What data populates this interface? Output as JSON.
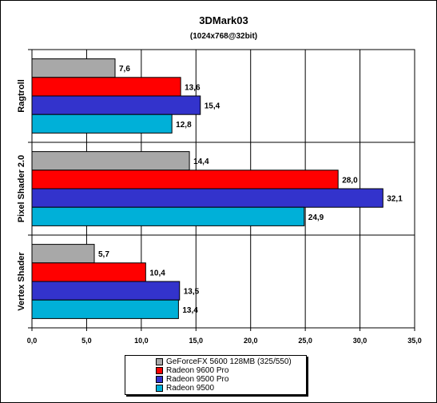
{
  "chart_data": {
    "type": "bar",
    "orientation": "horizontal",
    "title": "3DMark03",
    "subtitle": "(1024x768@32bit)",
    "categories": [
      "Ragtroll",
      "Pixel Shader 2.0",
      "Vertex Shader"
    ],
    "series": [
      {
        "name": "GeForceFX 5600 128MB (325/550)",
        "color": "#a8a8a8",
        "values": [
          7.6,
          14.4,
          5.7
        ],
        "labels": [
          "7,6",
          "14,4",
          "5,7"
        ]
      },
      {
        "name": "Radeon 9600 Pro",
        "color": "#ff0000",
        "values": [
          13.6,
          28.0,
          10.4
        ],
        "labels": [
          "13,6",
          "28,0",
          "10,4"
        ]
      },
      {
        "name": "Radeon 9500 Pro",
        "color": "#3333cc",
        "values": [
          15.4,
          32.1,
          13.5
        ],
        "labels": [
          "15,4",
          "32,1",
          "13,5"
        ]
      },
      {
        "name": "Radeon 9500",
        "color": "#00b0d8",
        "values": [
          12.8,
          24.9,
          13.4
        ],
        "labels": [
          "12,8",
          "24,9",
          "13,4"
        ]
      }
    ],
    "xlim": [
      0,
      35
    ],
    "xticks": [
      0,
      5,
      10,
      15,
      20,
      25,
      30,
      35
    ],
    "xtick_labels": [
      "0,0",
      "5,0",
      "10,0",
      "15,0",
      "20,0",
      "25,0",
      "30,0",
      "35,0"
    ],
    "grid": true,
    "legend_position": "bottom"
  }
}
